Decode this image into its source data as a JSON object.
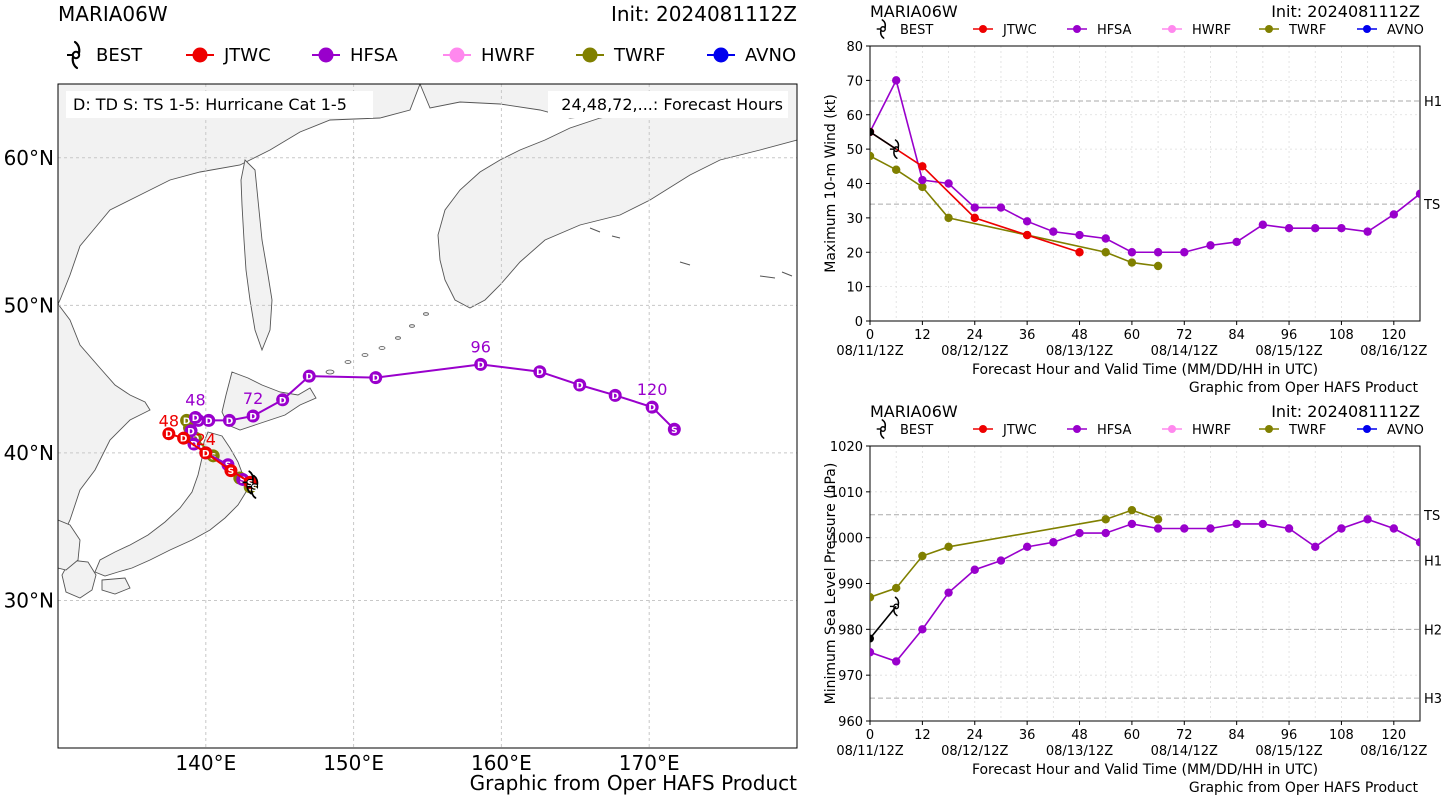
{
  "colors": {
    "BEST": "#000000",
    "JTWC": "#ee0000",
    "HFSA": "#9900cc",
    "HWRF": "#ff88ee",
    "TWRF": "#808000",
    "AVNO": "#0000ee",
    "land": "#f2f2f2",
    "coast": "#555555",
    "grid": "#c8c8c8"
  },
  "map_panel": {
    "storm": "MARIA06W",
    "init": "Init: 2024081112Z",
    "legend": [
      {
        "label": "BEST",
        "key": "BEST",
        "icon": "hurricane-symbol-icon"
      },
      {
        "label": "JTWC",
        "key": "JTWC"
      },
      {
        "label": "HFSA",
        "key": "HFSA"
      },
      {
        "label": "HWRF",
        "key": "HWRF"
      },
      {
        "label": "TWRF",
        "key": "TWRF"
      },
      {
        "label": "AVNO",
        "key": "AVNO"
      }
    ],
    "info_left": "D: TD  S: TS  1-5: Hurricane Cat 1-5",
    "info_right": "24,48,72,...: Forecast Hours",
    "footer": "Graphic from Oper HAFS Product",
    "lat_labels": [
      {
        "lat": 60,
        "text": "60°N"
      },
      {
        "lat": 50,
        "text": "50°N"
      },
      {
        "lat": 40,
        "text": "40°N"
      },
      {
        "lat": 30,
        "text": "30°N"
      }
    ],
    "lon_labels": [
      {
        "lon": 140,
        "text": "140°E"
      },
      {
        "lon": 150,
        "text": "150°E"
      },
      {
        "lon": 160,
        "text": "160°E"
      },
      {
        "lon": 170,
        "text": "170°E"
      }
    ]
  },
  "chart_data": [
    {
      "type": "map-track",
      "title": "MARIA06W",
      "xlim": [
        130,
        180
      ],
      "ylim": [
        20,
        65
      ],
      "tracks": [
        {
          "name": "BEST",
          "points": [
            {
              "lon": 143.0,
              "lat": 38.0,
              "cat": "S"
            },
            {
              "lon": 143.3,
              "lat": 37.7,
              "cat": "S"
            }
          ]
        },
        {
          "name": "JTWC",
          "points": [
            {
              "lon": 143.0,
              "lat": 38.0,
              "cat": "S"
            },
            {
              "lon": 141.7,
              "lat": 38.8,
              "cat": "S"
            },
            {
              "lon": 140.0,
              "lat": 40.0,
              "cat": "D",
              "hour": "24"
            },
            {
              "lon": 138.5,
              "lat": 41.0,
              "cat": "D"
            },
            {
              "lon": 137.5,
              "lat": 41.3,
              "cat": "D",
              "hour": "48"
            }
          ]
        },
        {
          "name": "HFSA",
          "points": [
            {
              "lon": 143.0,
              "lat": 38.0,
              "cat": "S"
            },
            {
              "lon": 142.5,
              "lat": 38.2,
              "cat": "S"
            },
            {
              "lon": 141.5,
              "lat": 39.2,
              "cat": "S"
            },
            {
              "lon": 140.0,
              "lat": 40.0,
              "cat": "D"
            },
            {
              "lon": 139.2,
              "lat": 40.6,
              "cat": "D"
            },
            {
              "lon": 139.0,
              "lat": 41.5,
              "cat": "D"
            },
            {
              "lon": 139.5,
              "lat": 42.2,
              "cat": "D"
            },
            {
              "lon": 139.3,
              "lat": 42.4,
              "cat": "D",
              "hour": "48"
            },
            {
              "lon": 140.2,
              "lat": 42.2,
              "cat": "D"
            },
            {
              "lon": 141.6,
              "lat": 42.2,
              "cat": "D"
            },
            {
              "lon": 143.2,
              "lat": 42.5,
              "cat": "D",
              "hour": "72"
            },
            {
              "lon": 145.2,
              "lat": 43.6,
              "cat": "D"
            },
            {
              "lon": 147.0,
              "lat": 45.2,
              "cat": "D"
            },
            {
              "lon": 151.5,
              "lat": 45.1,
              "cat": "D"
            },
            {
              "lon": 158.6,
              "lat": 46.0,
              "cat": "D",
              "hour": "96"
            },
            {
              "lon": 162.6,
              "lat": 45.5,
              "cat": "D"
            },
            {
              "lon": 165.3,
              "lat": 44.6,
              "cat": "D"
            },
            {
              "lon": 167.7,
              "lat": 43.9,
              "cat": "D"
            },
            {
              "lon": 170.2,
              "lat": 43.1,
              "cat": "D",
              "hour": "120"
            },
            {
              "lon": 171.7,
              "lat": 41.6,
              "cat": "S"
            }
          ]
        },
        {
          "name": "TWRF",
          "points": [
            {
              "lon": 143.0,
              "lat": 37.7,
              "cat": "S"
            },
            {
              "lon": 142.3,
              "lat": 38.3,
              "cat": "S"
            },
            {
              "lon": 140.5,
              "lat": 39.8,
              "cat": "S"
            },
            {
              "lon": 139.3,
              "lat": 41.0,
              "cat": "D"
            },
            {
              "lon": 138.9,
              "lat": 41.7,
              "cat": "D"
            },
            {
              "lon": 138.7,
              "lat": 42.2,
              "cat": "D"
            }
          ]
        }
      ]
    },
    {
      "type": "line",
      "title": "MARIA06W",
      "init": "Init: 2024081112Z",
      "xlabel": "Forecast Hour and Valid Time (MM/DD/HH in UTC)",
      "ylabel": "Maximum 10-m Wind (kt)",
      "footer": "Graphic from Oper HAFS Product",
      "xlim": [
        0,
        126
      ],
      "ylim": [
        0,
        80
      ],
      "xticks": [
        0,
        12,
        24,
        36,
        48,
        60,
        72,
        84,
        96,
        108,
        120
      ],
      "yticks": [
        0,
        10,
        20,
        30,
        40,
        50,
        60,
        70,
        80
      ],
      "date_labels": [
        {
          "x": 0,
          "text": "08/11/12Z"
        },
        {
          "x": 24,
          "text": "08/12/12Z"
        },
        {
          "x": 48,
          "text": "08/13/12Z"
        },
        {
          "x": 72,
          "text": "08/14/12Z"
        },
        {
          "x": 96,
          "text": "08/15/12Z"
        },
        {
          "x": 120,
          "text": "08/16/12Z"
        }
      ],
      "thresholds": [
        {
          "value": 64,
          "label": "H1"
        },
        {
          "value": 34,
          "label": "TS"
        }
      ],
      "legend": [
        "BEST",
        "JTWC",
        "HFSA",
        "HWRF",
        "TWRF",
        "AVNO"
      ],
      "series": [
        {
          "name": "BEST",
          "x": [
            0,
            6
          ],
          "values": [
            55,
            50
          ],
          "best": true
        },
        {
          "name": "JTWC",
          "x": [
            0,
            12,
            24,
            36,
            48
          ],
          "values": [
            55,
            45,
            30,
            25,
            20
          ]
        },
        {
          "name": "HFSA",
          "x": [
            0,
            6,
            12,
            18,
            24,
            30,
            36,
            42,
            48,
            54,
            60,
            66,
            72,
            78,
            84,
            90,
            96,
            102,
            108,
            114,
            120,
            126
          ],
          "values": [
            55,
            70,
            41,
            40,
            33,
            33,
            29,
            26,
            25,
            24,
            20,
            20,
            20,
            22,
            23,
            28,
            27,
            27,
            27,
            26,
            31,
            37
          ]
        },
        {
          "name": "TWRF",
          "x": [
            0,
            6,
            12,
            18,
            36,
            54,
            60,
            66
          ],
          "values": [
            48,
            44,
            39,
            30,
            25,
            20,
            17,
            16
          ]
        }
      ]
    },
    {
      "type": "line",
      "title": "MARIA06W",
      "init": "Init: 2024081112Z",
      "xlabel": "Forecast Hour and Valid Time (MM/DD/HH in UTC)",
      "ylabel": "Minimum Sea Level Pressure (hPa)",
      "footer": "Graphic from Oper HAFS Product",
      "xlim": [
        0,
        126
      ],
      "ylim": [
        960,
        1020
      ],
      "xticks": [
        0,
        12,
        24,
        36,
        48,
        60,
        72,
        84,
        96,
        108,
        120
      ],
      "yticks": [
        960,
        970,
        980,
        990,
        1000,
        1010,
        1020
      ],
      "date_labels": [
        {
          "x": 0,
          "text": "08/11/12Z"
        },
        {
          "x": 24,
          "text": "08/12/12Z"
        },
        {
          "x": 48,
          "text": "08/13/12Z"
        },
        {
          "x": 72,
          "text": "08/14/12Z"
        },
        {
          "x": 96,
          "text": "08/15/12Z"
        },
        {
          "x": 120,
          "text": "08/16/12Z"
        }
      ],
      "thresholds": [
        {
          "value": 1005,
          "label": "TS"
        },
        {
          "value": 995,
          "label": "H1"
        },
        {
          "value": 980,
          "label": "H2"
        },
        {
          "value": 965,
          "label": "H3"
        }
      ],
      "legend": [
        "BEST",
        "JTWC",
        "HFSA",
        "HWRF",
        "TWRF",
        "AVNO"
      ],
      "series": [
        {
          "name": "BEST",
          "x": [
            0,
            6
          ],
          "values": [
            978,
            985
          ],
          "best": true
        },
        {
          "name": "HFSA",
          "x": [
            0,
            6,
            12,
            18,
            24,
            30,
            36,
            42,
            48,
            54,
            60,
            66,
            72,
            78,
            84,
            90,
            96,
            102,
            108,
            114,
            120,
            126
          ],
          "values": [
            975,
            973,
            980,
            988,
            993,
            995,
            998,
            999,
            1001,
            1001,
            1003,
            1002,
            1002,
            1002,
            1003,
            1003,
            1002,
            998,
            1002,
            1004,
            1002,
            999
          ]
        },
        {
          "name": "TWRF",
          "x": [
            0,
            6,
            12,
            18,
            54,
            60,
            66
          ],
          "values": [
            987,
            989,
            996,
            998,
            1004,
            1006,
            1004
          ]
        }
      ]
    }
  ]
}
